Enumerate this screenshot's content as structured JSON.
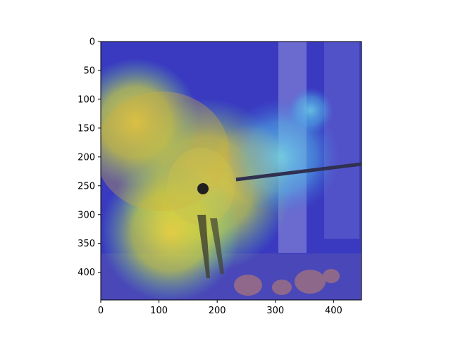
{
  "figure": {
    "type": "image-heatmap-overlay",
    "subject": "bird-heatmap-overlay",
    "colormap": "jet",
    "overlay_alpha": 0.45,
    "image_extent": {
      "width": 448,
      "height": 448
    }
  },
  "axes": {
    "x_ticks": [
      0,
      100,
      200,
      300,
      400
    ],
    "y_ticks": [
      0,
      50,
      100,
      150,
      200,
      250,
      300,
      350,
      400
    ],
    "xlim": [
      0,
      448
    ],
    "ylim": [
      448,
      0
    ],
    "colors": {
      "frame": "#000000",
      "tick": "#000000"
    }
  },
  "heatmap": {
    "background_color": "#2a2ab8",
    "hotspots": [
      {
        "cx": 255,
        "cy": 215,
        "r": 70,
        "level": 1.0
      },
      {
        "cx": 180,
        "cy": 250,
        "r": 150,
        "level": 0.75
      },
      {
        "cx": 60,
        "cy": 140,
        "r": 110,
        "level": 0.55
      },
      {
        "cx": 120,
        "cy": 330,
        "r": 120,
        "level": 0.55
      },
      {
        "cx": 360,
        "cy": 120,
        "r": 40,
        "level": 0.45
      },
      {
        "cx": 310,
        "cy": 200,
        "r": 100,
        "level": 0.5
      }
    ]
  }
}
